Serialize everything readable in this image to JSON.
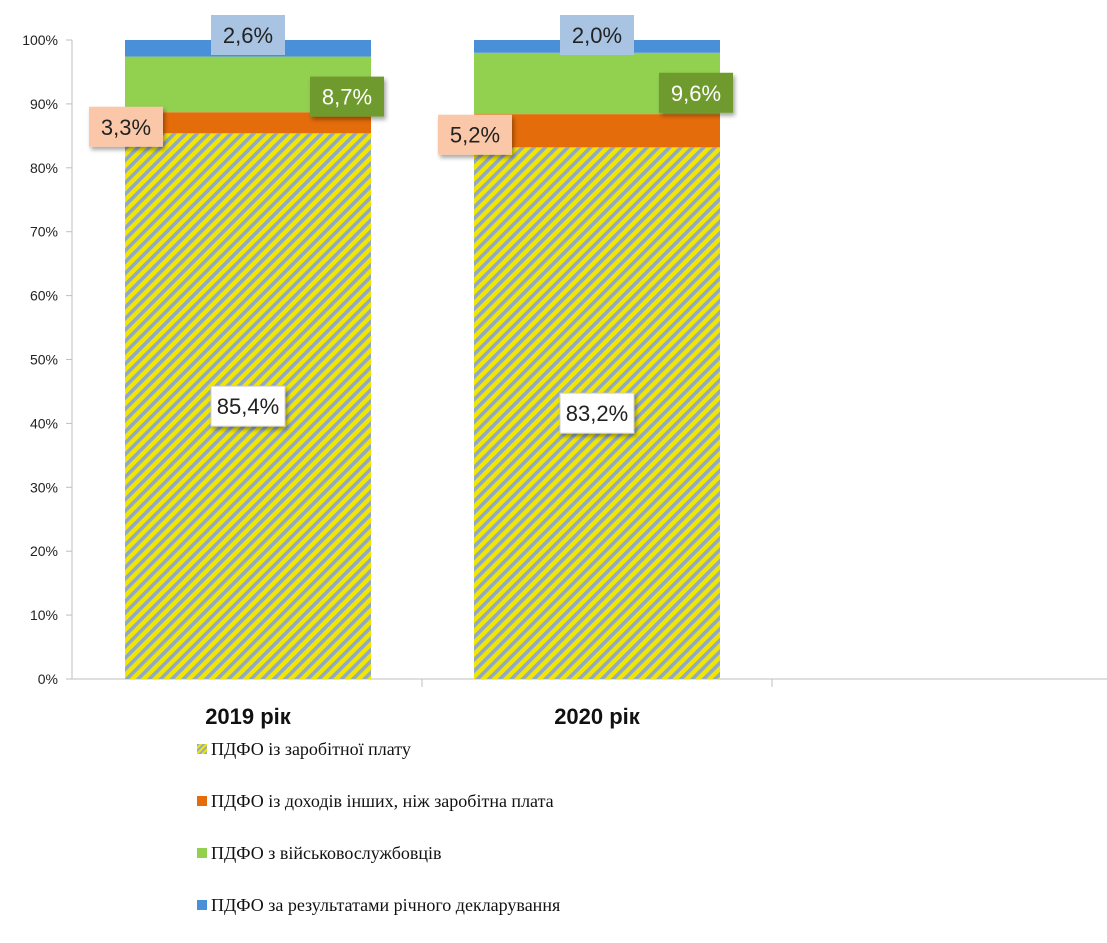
{
  "chart_data": {
    "type": "bar",
    "stacked": true,
    "categories": [
      "2019 рік",
      "2020 рік"
    ],
    "series": [
      {
        "name": "ПДФО із заробітної плату",
        "values": [
          85.4,
          83.2
        ],
        "labels": [
          "85,4%",
          "83,2%"
        ],
        "color": "#F2E600",
        "pattern": "diagonal-stripes",
        "stripe_color": "#8FA8C8"
      },
      {
        "name": "ПДФО із доходів інших, ніж заробітна плата",
        "values": [
          3.3,
          5.2
        ],
        "labels": [
          "3,3%",
          "5,2%"
        ],
        "color": "#E46C0A",
        "label_fill": "#FAC8A8",
        "label_text": "#222222"
      },
      {
        "name": "ПДФО з військовослужбовців",
        "values": [
          8.7,
          9.6
        ],
        "labels": [
          "8,7%",
          "9,6%"
        ],
        "color": "#92D050",
        "label_fill": "#6E9A2E",
        "label_text": "#FFFFFF"
      },
      {
        "name": "ПДФО за результатами річного декларування",
        "values": [
          2.6,
          2.0
        ],
        "labels": [
          "2,6%",
          "2,0%"
        ],
        "color": "#4A90D9",
        "label_fill": "#A9C4E3",
        "label_text": "#222222"
      }
    ],
    "yticks": [
      "0%",
      "10%",
      "20%",
      "30%",
      "40%",
      "50%",
      "60%",
      "70%",
      "80%",
      "90%",
      "100%"
    ],
    "ylim": [
      0,
      100
    ],
    "legend": "bottom",
    "grid": false
  }
}
